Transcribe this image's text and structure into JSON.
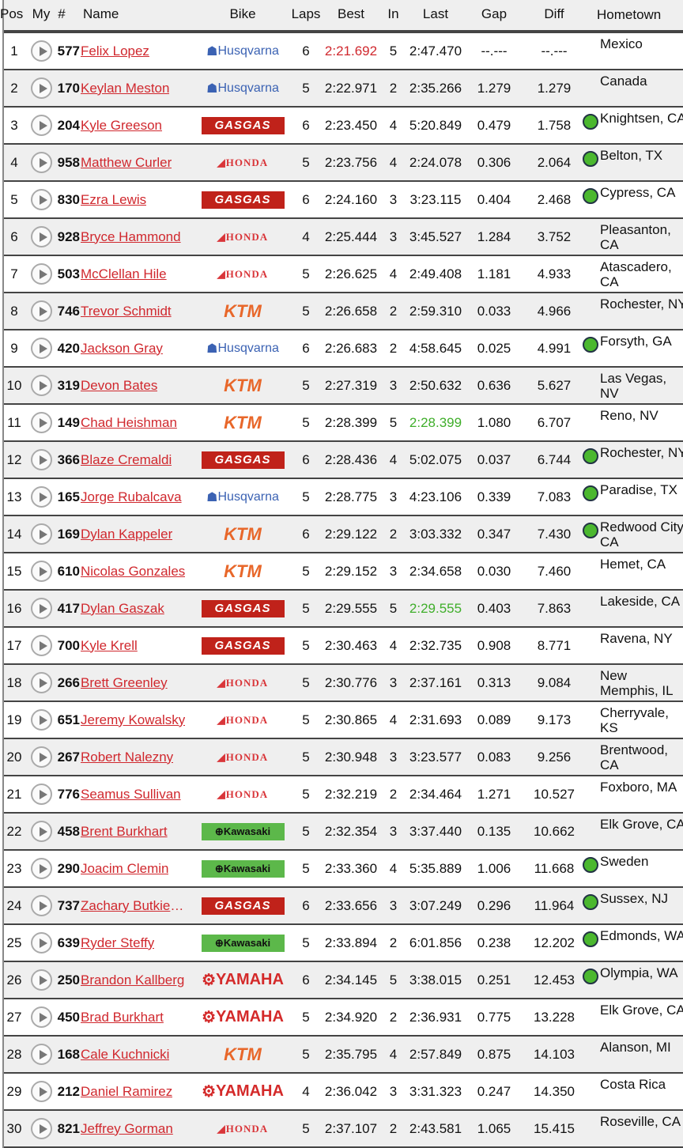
{
  "headers": {
    "pos": "Pos",
    "my": "My",
    "num": "#",
    "name": "Name",
    "bike": "Bike",
    "laps": "Laps",
    "best": "Best",
    "in": "In",
    "last": "Last",
    "gap": "Gap",
    "diff": "Diff",
    "hometown": "Hometown"
  },
  "colors": {
    "link": "#d0282e",
    "best_overall": "#d0282e",
    "personal_best": "#3fae2a",
    "status_dot": "#4bb82f"
  },
  "rows": [
    {
      "pos": "1",
      "num": "577",
      "name": "Felix Lopez",
      "bike": "Husqvarna",
      "laps": "6",
      "best": "2:21.692",
      "best_hl": "red",
      "in": "5",
      "last": "2:47.470",
      "gap": "--.---",
      "diff": "--.---",
      "hometown": "Mexico",
      "dot": false
    },
    {
      "pos": "2",
      "num": "170",
      "name": "Keylan Meston",
      "bike": "Husqvarna",
      "laps": "5",
      "best": "2:22.971",
      "in": "2",
      "last": "2:35.266",
      "gap": "1.279",
      "diff": "1.279",
      "hometown": "Canada",
      "dot": false
    },
    {
      "pos": "3",
      "num": "204",
      "name": "Kyle Greeson",
      "bike": "GASGAS",
      "laps": "6",
      "best": "2:23.450",
      "in": "4",
      "last": "5:20.849",
      "gap": "0.479",
      "diff": "1.758",
      "hometown": "Knightsen, CA",
      "dot": true
    },
    {
      "pos": "4",
      "num": "958",
      "name": "Matthew Curler",
      "bike": "HONDA",
      "laps": "5",
      "best": "2:23.756",
      "in": "4",
      "last": "2:24.078",
      "gap": "0.306",
      "diff": "2.064",
      "hometown": "Belton, TX",
      "dot": true
    },
    {
      "pos": "5",
      "num": "830",
      "name": "Ezra Lewis",
      "bike": "GASGAS",
      "laps": "6",
      "best": "2:24.160",
      "in": "3",
      "last": "3:23.115",
      "gap": "0.404",
      "diff": "2.468",
      "hometown": "Cypress, CA",
      "dot": true
    },
    {
      "pos": "6",
      "num": "928",
      "name": "Bryce Hammond",
      "bike": "HONDA",
      "laps": "4",
      "best": "2:25.444",
      "in": "3",
      "last": "3:45.527",
      "gap": "1.284",
      "diff": "3.752",
      "hometown": "Pleasanton, CA",
      "dot": false
    },
    {
      "pos": "7",
      "num": "503",
      "name": "McClellan Hile",
      "bike": "HONDA",
      "laps": "5",
      "best": "2:26.625",
      "in": "4",
      "last": "2:49.408",
      "gap": "1.181",
      "diff": "4.933",
      "hometown": "Atascadero, CA",
      "dot": false
    },
    {
      "pos": "8",
      "num": "746",
      "name": "Trevor Schmidt",
      "bike": "KTM",
      "laps": "5",
      "best": "2:26.658",
      "in": "2",
      "last": "2:59.310",
      "gap": "0.033",
      "diff": "4.966",
      "hometown": "Rochester, NY",
      "dot": false
    },
    {
      "pos": "9",
      "num": "420",
      "name": "Jackson Gray",
      "bike": "Husqvarna",
      "laps": "6",
      "best": "2:26.683",
      "in": "2",
      "last": "4:58.645",
      "gap": "0.025",
      "diff": "4.991",
      "hometown": "Forsyth, GA",
      "dot": true
    },
    {
      "pos": "10",
      "num": "319",
      "name": "Devon Bates",
      "bike": "KTM",
      "laps": "5",
      "best": "2:27.319",
      "in": "3",
      "last": "2:50.632",
      "gap": "0.636",
      "diff": "5.627",
      "hometown": "Las Vegas, NV",
      "dot": false
    },
    {
      "pos": "11",
      "num": "149",
      "name": "Chad Heishman",
      "bike": "KTM",
      "laps": "5",
      "best": "2:28.399",
      "in": "5",
      "last": "2:28.399",
      "last_hl": "green",
      "gap": "1.080",
      "diff": "6.707",
      "hometown": "Reno, NV",
      "dot": false
    },
    {
      "pos": "12",
      "num": "366",
      "name": "Blaze Cremaldi",
      "bike": "GASGAS",
      "laps": "6",
      "best": "2:28.436",
      "in": "4",
      "last": "5:02.075",
      "gap": "0.037",
      "diff": "6.744",
      "hometown": "Rochester, NY",
      "dot": true
    },
    {
      "pos": "13",
      "num": "165",
      "name": "Jorge Rubalcava",
      "bike": "Husqvarna",
      "laps": "5",
      "best": "2:28.775",
      "in": "3",
      "last": "4:23.106",
      "gap": "0.339",
      "diff": "7.083",
      "hometown": "Paradise, TX",
      "dot": true
    },
    {
      "pos": "14",
      "num": "169",
      "name": "Dylan Kappeler",
      "bike": "KTM",
      "laps": "6",
      "best": "2:29.122",
      "in": "2",
      "last": "3:03.332",
      "gap": "0.347",
      "diff": "7.430",
      "hometown": "Redwood City, CA",
      "dot": true
    },
    {
      "pos": "15",
      "num": "610",
      "name": "Nicolas Gonzales",
      "bike": "KTM",
      "laps": "5",
      "best": "2:29.152",
      "in": "3",
      "last": "2:34.658",
      "gap": "0.030",
      "diff": "7.460",
      "hometown": "Hemet, CA",
      "dot": false
    },
    {
      "pos": "16",
      "num": "417",
      "name": "Dylan Gaszak",
      "bike": "GASGAS",
      "laps": "5",
      "best": "2:29.555",
      "in": "5",
      "last": "2:29.555",
      "last_hl": "green",
      "gap": "0.403",
      "diff": "7.863",
      "hometown": "Lakeside, CA",
      "dot": false
    },
    {
      "pos": "17",
      "num": "700",
      "name": "Kyle Krell",
      "bike": "GASGAS",
      "laps": "5",
      "best": "2:30.463",
      "in": "4",
      "last": "2:32.735",
      "gap": "0.908",
      "diff": "8.771",
      "hometown": "Ravena, NY",
      "dot": false
    },
    {
      "pos": "18",
      "num": "266",
      "name": "Brett Greenley",
      "bike": "HONDA",
      "laps": "5",
      "best": "2:30.776",
      "in": "3",
      "last": "2:37.161",
      "gap": "0.313",
      "diff": "9.084",
      "hometown": "New Memphis, IL",
      "dot": false
    },
    {
      "pos": "19",
      "num": "651",
      "name": "Jeremy Kowalsky",
      "bike": "HONDA",
      "laps": "5",
      "best": "2:30.865",
      "in": "4",
      "last": "2:31.693",
      "gap": "0.089",
      "diff": "9.173",
      "hometown": "Cherryvale, KS",
      "dot": false
    },
    {
      "pos": "20",
      "num": "267",
      "name": "Robert Nalezny",
      "bike": "HONDA",
      "laps": "5",
      "best": "2:30.948",
      "in": "3",
      "last": "3:23.577",
      "gap": "0.083",
      "diff": "9.256",
      "hometown": "Brentwood, CA",
      "dot": false
    },
    {
      "pos": "21",
      "num": "776",
      "name": "Seamus Sullivan",
      "bike": "HONDA",
      "laps": "5",
      "best": "2:32.219",
      "in": "2",
      "last": "2:34.464",
      "gap": "1.271",
      "diff": "10.527",
      "hometown": "Foxboro, MA",
      "dot": false
    },
    {
      "pos": "22",
      "num": "458",
      "name": "Brent Burkhart",
      "bike": "Kawasaki",
      "laps": "5",
      "best": "2:32.354",
      "in": "3",
      "last": "3:37.440",
      "gap": "0.135",
      "diff": "10.662",
      "hometown": "Elk Grove, CA",
      "dot": false
    },
    {
      "pos": "23",
      "num": "290",
      "name": "Joacim Clemin",
      "bike": "Kawasaki",
      "laps": "5",
      "best": "2:33.360",
      "in": "4",
      "last": "5:35.889",
      "gap": "1.006",
      "diff": "11.668",
      "hometown": "Sweden",
      "dot": true
    },
    {
      "pos": "24",
      "num": "737",
      "name": "Zachary Butkiewicz",
      "bike": "GASGAS",
      "laps": "6",
      "best": "2:33.656",
      "in": "3",
      "last": "3:07.249",
      "gap": "0.296",
      "diff": "11.964",
      "hometown": "Sussex, NJ",
      "dot": true
    },
    {
      "pos": "25",
      "num": "639",
      "name": "Ryder Steffy",
      "bike": "Kawasaki",
      "laps": "5",
      "best": "2:33.894",
      "in": "2",
      "last": "6:01.856",
      "gap": "0.238",
      "diff": "12.202",
      "hometown": "Edmonds, WA",
      "dot": true
    },
    {
      "pos": "26",
      "num": "250",
      "name": "Brandon Kallberg",
      "bike": "YAMAHA",
      "laps": "6",
      "best": "2:34.145",
      "in": "5",
      "last": "3:38.015",
      "gap": "0.251",
      "diff": "12.453",
      "hometown": "Olympia, WA",
      "dot": true
    },
    {
      "pos": "27",
      "num": "450",
      "name": "Brad Burkhart",
      "bike": "YAMAHA",
      "laps": "5",
      "best": "2:34.920",
      "in": "2",
      "last": "2:36.931",
      "gap": "0.775",
      "diff": "13.228",
      "hometown": "Elk Grove, CA",
      "dot": false
    },
    {
      "pos": "28",
      "num": "168",
      "name": "Cale Kuchnicki",
      "bike": "KTM",
      "laps": "5",
      "best": "2:35.795",
      "in": "4",
      "last": "2:57.849",
      "gap": "0.875",
      "diff": "14.103",
      "hometown": "Alanson, MI",
      "dot": false
    },
    {
      "pos": "29",
      "num": "212",
      "name": "Daniel Ramirez",
      "bike": "YAMAHA",
      "laps": "4",
      "best": "2:36.042",
      "in": "3",
      "last": "3:31.323",
      "gap": "0.247",
      "diff": "14.350",
      "hometown": "Costa Rica",
      "dot": false
    },
    {
      "pos": "30",
      "num": "821",
      "name": "Jeffrey Gorman",
      "bike": "HONDA",
      "laps": "5",
      "best": "2:37.107",
      "in": "2",
      "last": "2:43.581",
      "gap": "1.065",
      "diff": "15.415",
      "hometown": "Roseville, CA",
      "dot": false
    }
  ]
}
